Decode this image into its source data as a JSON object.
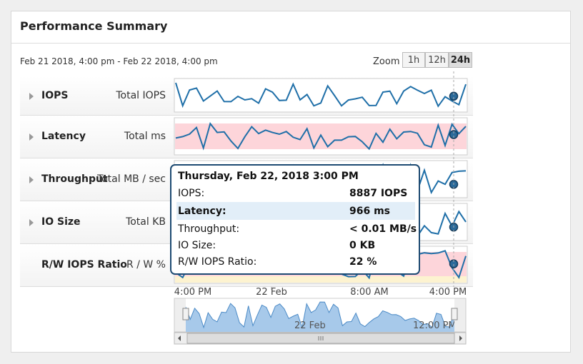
{
  "header": {
    "title": "Performance Summary"
  },
  "date_range": "Feb 21 2018, 4:00 pm - Feb 22 2018, 4:00 pm",
  "zoom": {
    "label": "Zoom",
    "options": [
      "1h",
      "12h",
      "24h"
    ]
  },
  "rows": [
    {
      "name": "IOPS",
      "unit": "Total IOPS"
    },
    {
      "name": "Latency",
      "unit": "Total ms"
    },
    {
      "name": "Throughput",
      "unit": "Total MB / sec"
    },
    {
      "name": "IO Size",
      "unit": "Total KB"
    },
    {
      "name": "R/W IOPS Ratio",
      "unit": "R / W %"
    }
  ],
  "tooltip": {
    "title": "Thursday, Feb 22, 2018 3:00 PM",
    "rows": [
      [
        "IOPS:",
        "8887 IOPS"
      ],
      [
        "Latency:",
        "966 ms"
      ],
      [
        "Throughput:",
        "< 0.01 MB/s"
      ],
      [
        "IO Size:",
        "0 KB"
      ],
      [
        "R/W IOPS Ratio:",
        "22 %"
      ]
    ]
  },
  "time_axis": [
    "4:00 PM",
    "22 Feb",
    "8:00 AM",
    "4:00 PM"
  ],
  "navigator": {
    "labels": [
      "22 Feb",
      "12:00 PM"
    ]
  }
}
